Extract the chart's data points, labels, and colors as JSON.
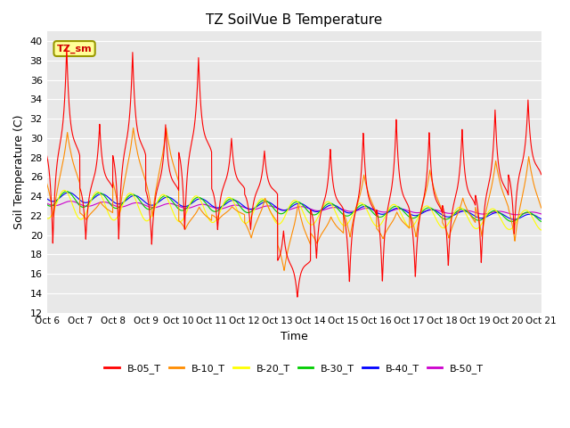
{
  "title": "TZ SoilVue B Temperature",
  "xlabel": "Time",
  "ylabel": "Soil Temperature (C)",
  "ylim": [
    12,
    41
  ],
  "yticks": [
    12,
    14,
    16,
    18,
    20,
    22,
    24,
    26,
    28,
    30,
    32,
    34,
    36,
    38,
    40
  ],
  "xtick_labels": [
    "Oct 6",
    "Oct 7",
    "Oct 8",
    "Oct 9",
    "Oct 10",
    "Oct 11",
    "Oct 12",
    "Oct 13",
    "Oct 14",
    "Oct 15",
    "Oct 16",
    "Oct 17",
    "Oct 18",
    "Oct 19",
    "Oct 20",
    "Oct 21"
  ],
  "annotation_text": "TZ_sm",
  "bg_color": "#e8e8e8",
  "fig_color": "#ffffff",
  "line_colors": {
    "B-05_T": "#ff0000",
    "B-10_T": "#ff8c00",
    "B-20_T": "#ffff00",
    "B-30_T": "#00cc00",
    "B-40_T": "#0000ff",
    "B-50_T": "#cc00cc"
  },
  "legend_labels": [
    "B-05_T",
    "B-10_T",
    "B-20_T",
    "B-30_T",
    "B-40_T",
    "B-50_T"
  ],
  "b05_peaks": [
    39.5,
    31.5,
    39.0,
    31.5,
    38.5,
    31.0,
    30.1,
    28.8,
    29.0,
    28.0,
    30.7,
    32.1,
    30.7,
    33.0,
    34.0,
    35.5
  ],
  "b05_troughs": [
    19.0,
    19.5,
    19.5,
    19.0,
    18.8,
    20.5,
    16.5,
    15.0,
    17.5,
    15.0,
    15.0,
    15.5,
    16.7,
    17.0,
    20.0,
    20.0
  ],
  "b10_peaks": [
    31.0,
    23.5,
    31.5,
    31.5,
    24.0,
    23.0,
    24.0,
    23.5,
    22.0,
    26.5,
    22.5,
    27.0,
    24.0,
    28.0,
    28.5,
    23.5
  ],
  "b10_troughs": [
    21.5,
    21.5,
    21.5,
    21.5,
    20.5,
    21.5,
    19.5,
    19.0,
    20.0,
    19.5,
    19.5,
    19.5,
    19.5,
    19.5,
    19.0,
    20.0
  ],
  "b20_base": 23.0,
  "b30_base": 23.5,
  "b40_base": 23.8,
  "b50_base": 23.2
}
